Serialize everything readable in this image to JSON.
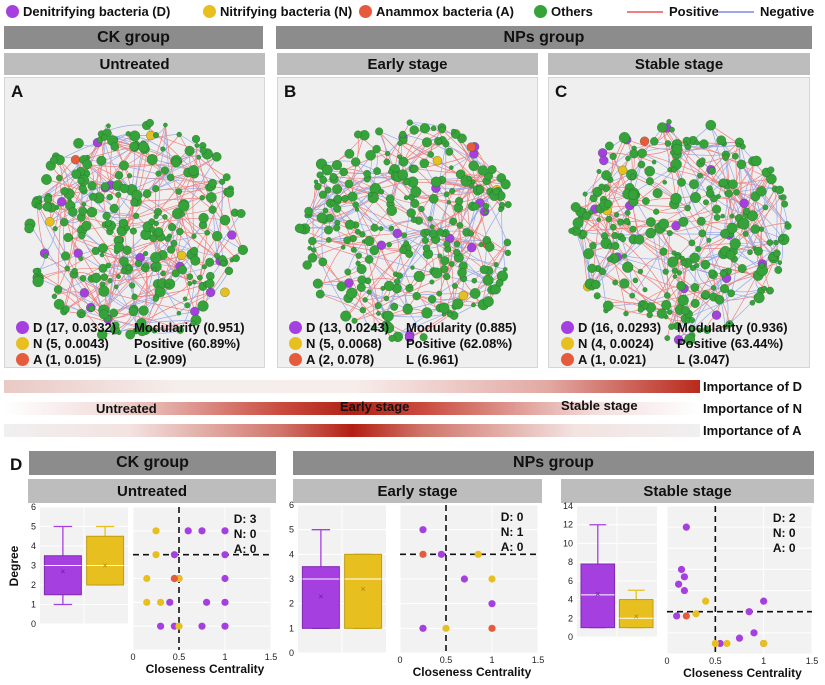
{
  "legend": {
    "items": [
      {
        "label": "Denitrifying bacteria (D)",
        "color": "#a63fe0",
        "type": "dot"
      },
      {
        "label": "Nitrifying bacteria (N)",
        "color": "#e7c020",
        "type": "dot"
      },
      {
        "label": "Anammox bacteria (A)",
        "color": "#e55b3c",
        "type": "dot"
      },
      {
        "label": "Others",
        "color": "#35a23a",
        "type": "dot"
      },
      {
        "label": "Positive",
        "color": "#f08080",
        "type": "line"
      },
      {
        "label": "Negative",
        "color": "#9aa9e8",
        "type": "line"
      }
    ]
  },
  "groups": {
    "ck": "CK group",
    "nps": "NPs group"
  },
  "stages": {
    "untreated": "Untreated",
    "early": "Early stage",
    "stable": "Stable stage"
  },
  "panels": [
    {
      "letter": "A",
      "stats": {
        "d": "D (17, 0.0332)",
        "n": "N (5, 0.0043)",
        "a": "A (1, 0.015)",
        "modularity": "Modularity (0.951)",
        "positive": "Positive (60.89%)",
        "l": "L (2.909)"
      }
    },
    {
      "letter": "B",
      "stats": {
        "d": "D (13, 0.0243)",
        "n": "N (5, 0.0068)",
        "a": "A (2, 0.078)",
        "modularity": "Modularity (0.885)",
        "positive": "Positive (62.08%)",
        "l": "L (6.961)"
      }
    },
    {
      "letter": "C",
      "stats": {
        "d": "D (16, 0.0293)",
        "n": "N (4, 0.0024)",
        "a": "A (1, 0.021)",
        "modularity": "Modularity (0.936)",
        "positive": "Positive (63.44%)",
        "l": "L (3.047)"
      }
    }
  ],
  "importance": {
    "labels": [
      "Importance of D",
      "Importance of N",
      "Importance of A"
    ],
    "stage_labels": [
      "Untreated",
      "Early stage",
      "Stable stage"
    ]
  },
  "section_d": {
    "letter": "D",
    "ylabel": "Degree",
    "xlabel": "Closeness Centrality",
    "colors": {
      "D": "#a63fe0",
      "N": "#e7c020",
      "A": "#e55b3c"
    }
  },
  "chart_data": [
    {
      "type": "box",
      "name": "Untreated",
      "ylabel": "Degree",
      "ylim": [
        0,
        6
      ],
      "yticks": [
        0,
        1,
        2,
        3,
        4,
        5,
        6
      ],
      "boxes": [
        {
          "series": "D",
          "min": 1,
          "q1": 1.5,
          "median": 3,
          "q3": 3.5,
          "max": 5,
          "mean": 2.7
        },
        {
          "series": "N",
          "min": 2,
          "q1": 2,
          "median": 3,
          "q3": 4.5,
          "max": 5,
          "mean": 3
        }
      ]
    },
    {
      "type": "scatter",
      "name": "Untreated",
      "xlabel": "Closeness Centrality",
      "xlim": [
        0,
        1.5
      ],
      "xticks": [
        "0",
        "0.5",
        "1",
        "1.5"
      ],
      "ylim": [
        0,
        6
      ],
      "cutoff_x": 0.5,
      "cutoff_y": 4,
      "counts": [
        "D: 3",
        "N: 0",
        "A: 0"
      ],
      "points": [
        {
          "s": "D",
          "x": 0.6,
          "y": 5
        },
        {
          "s": "D",
          "x": 0.75,
          "y": 5
        },
        {
          "s": "D",
          "x": 1,
          "y": 5
        },
        {
          "s": "N",
          "x": 0.25,
          "y": 5
        },
        {
          "s": "D",
          "x": 0.45,
          "y": 4
        },
        {
          "s": "D",
          "x": 1,
          "y": 4
        },
        {
          "s": "N",
          "x": 0.25,
          "y": 4
        },
        {
          "s": "D",
          "x": 0.45,
          "y": 3
        },
        {
          "s": "D",
          "x": 0.5,
          "y": 3
        },
        {
          "s": "D",
          "x": 1,
          "y": 3
        },
        {
          "s": "N",
          "x": 0.15,
          "y": 3
        },
        {
          "s": "N",
          "x": 0.5,
          "y": 3
        },
        {
          "s": "D",
          "x": 0.4,
          "y": 2
        },
        {
          "s": "D",
          "x": 0.8,
          "y": 2
        },
        {
          "s": "D",
          "x": 1,
          "y": 2
        },
        {
          "s": "N",
          "x": 0.15,
          "y": 2
        },
        {
          "s": "N",
          "x": 0.3,
          "y": 2
        },
        {
          "s": "D",
          "x": 0.45,
          "y": 1
        },
        {
          "s": "D",
          "x": 0.75,
          "y": 1
        },
        {
          "s": "D",
          "x": 1,
          "y": 1
        },
        {
          "s": "D",
          "x": 0.3,
          "y": 1
        },
        {
          "s": "N",
          "x": 0.5,
          "y": 1
        },
        {
          "s": "A",
          "x": 0.45,
          "y": 3
        }
      ]
    },
    {
      "type": "box",
      "name": "Early stage",
      "ylabel": "Degree",
      "ylim": [
        0,
        6
      ],
      "yticks": [
        0,
        1,
        2,
        3,
        4,
        5,
        6
      ],
      "boxes": [
        {
          "series": "D",
          "min": 1,
          "q1": 1,
          "median": 3,
          "q3": 3.5,
          "max": 5,
          "mean": 2.3
        },
        {
          "series": "N",
          "min": 1,
          "q1": 1,
          "median": 3,
          "q3": 4,
          "max": 4,
          "mean": 2.6
        }
      ]
    },
    {
      "type": "scatter",
      "name": "Early stage",
      "xlabel": "Closeness Centrality",
      "xlim": [
        0,
        1.5
      ],
      "xticks": [
        "0",
        "0.5",
        "1",
        "1.5"
      ],
      "ylim": [
        0,
        6
      ],
      "cutoff_x": 0.5,
      "cutoff_y": 4,
      "counts": [
        "D: 0",
        "N: 1",
        "A: 0"
      ],
      "points": [
        {
          "s": "D",
          "x": 0.25,
          "y": 5
        },
        {
          "s": "D",
          "x": 0.45,
          "y": 4
        },
        {
          "s": "D",
          "x": 0.7,
          "y": 3
        },
        {
          "s": "D",
          "x": 1,
          "y": 2
        },
        {
          "s": "D",
          "x": 0.25,
          "y": 1
        },
        {
          "s": "N",
          "x": 0.85,
          "y": 4
        },
        {
          "s": "N",
          "x": 1,
          "y": 3
        },
        {
          "s": "N",
          "x": 0.5,
          "y": 1
        },
        {
          "s": "A",
          "x": 0.25,
          "y": 4
        },
        {
          "s": "A",
          "x": 1,
          "y": 1
        }
      ]
    },
    {
      "type": "box",
      "name": "Stable stage",
      "ylabel": "Degree",
      "ylim": [
        0,
        14
      ],
      "yticks": [
        0,
        2,
        4,
        6,
        8,
        10,
        12,
        14
      ],
      "boxes": [
        {
          "series": "D",
          "min": 1,
          "q1": 1,
          "median": 4.5,
          "q3": 7.8,
          "max": 12,
          "mean": 4.6
        },
        {
          "series": "N",
          "min": 1,
          "q1": 1,
          "median": 2,
          "q3": 4,
          "max": 5,
          "mean": 2.2
        }
      ]
    },
    {
      "type": "scatter",
      "name": "Stable stage",
      "xlabel": "Closeness Centrality",
      "xlim": [
        0,
        1.5
      ],
      "xticks": [
        "0",
        "0.5",
        "1",
        "1.5"
      ],
      "ylim": [
        0,
        14
      ],
      "cutoff_x": 0.5,
      "cutoff_y": 4,
      "counts": [
        "D: 2",
        "N: 0",
        "A: 0"
      ],
      "points": [
        {
          "s": "D",
          "x": 0.2,
          "y": 12
        },
        {
          "s": "D",
          "x": 0.15,
          "y": 8
        },
        {
          "s": "D",
          "x": 0.18,
          "y": 7.3
        },
        {
          "s": "D",
          "x": 0.12,
          "y": 6.6
        },
        {
          "s": "D",
          "x": 0.18,
          "y": 6
        },
        {
          "s": "D",
          "x": 0.85,
          "y": 4
        },
        {
          "s": "D",
          "x": 1,
          "y": 5
        },
        {
          "s": "D",
          "x": 0.9,
          "y": 2
        },
        {
          "s": "D",
          "x": 0.75,
          "y": 1.5
        },
        {
          "s": "D",
          "x": 1,
          "y": 1
        },
        {
          "s": "D",
          "x": 0.55,
          "y": 1
        },
        {
          "s": "D",
          "x": 0.1,
          "y": 3.6
        },
        {
          "s": "N",
          "x": 0.4,
          "y": 5
        },
        {
          "s": "N",
          "x": 0.5,
          "y": 1
        },
        {
          "s": "N",
          "x": 0.62,
          "y": 1
        },
        {
          "s": "N",
          "x": 1,
          "y": 1
        },
        {
          "s": "N",
          "x": 0.3,
          "y": 3.8
        },
        {
          "s": "A",
          "x": 0.2,
          "y": 3.6
        }
      ]
    }
  ]
}
